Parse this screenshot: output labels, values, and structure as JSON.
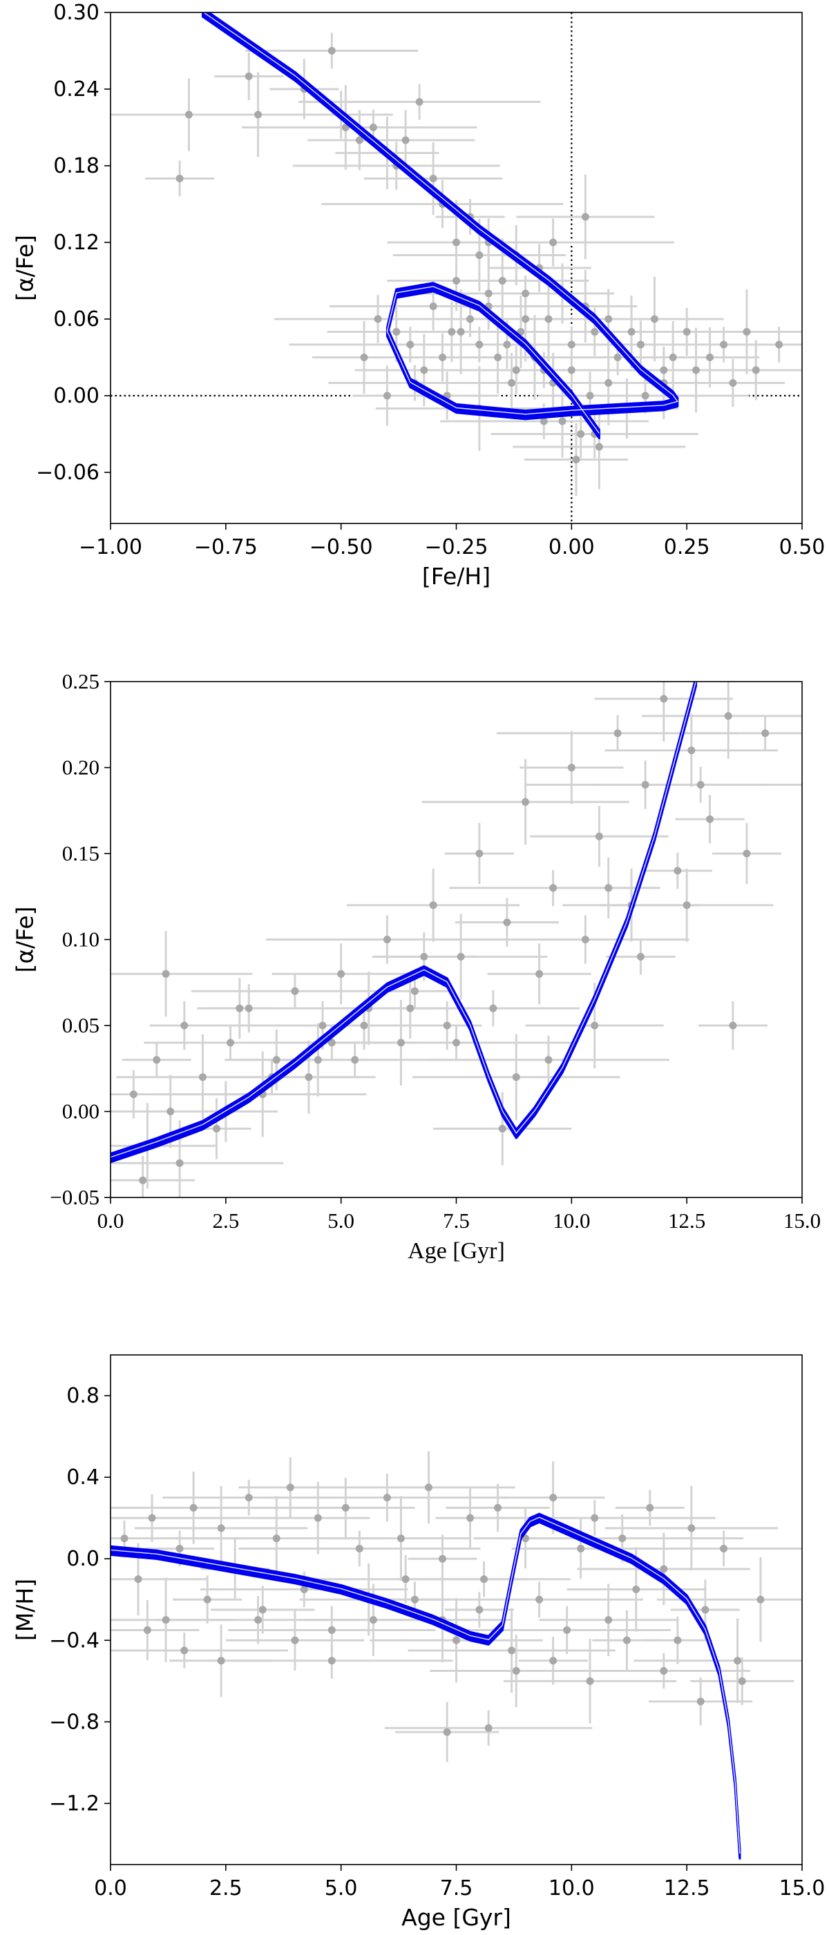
{
  "colors": {
    "points": "#a8a8a8",
    "errorbars": "#d3d3d3",
    "models": "#0000ee",
    "model_highlight": "#ffffff",
    "reference_lines": "#000000",
    "axes": "#000000"
  },
  "chart_data": [
    {
      "type": "scatter",
      "xlabel": "[Fe/H]",
      "ylabel": "[α/Fe]",
      "xlim": [
        -1.0,
        0.5
      ],
      "ylim": [
        -0.1,
        0.3
      ],
      "xticks": [
        "−1.00",
        "−0.75",
        "−0.50",
        "−0.25",
        "0.00",
        "0.25",
        "0.50"
      ],
      "yticks": [
        "−0.06",
        "0.00",
        "0.06",
        "0.12",
        "0.18",
        "0.24",
        "0.30"
      ],
      "reference_lines": {
        "vertical_x": 0.0,
        "horizontal_y": 0.0,
        "style": "dotted"
      },
      "series": [
        {
          "kind": "observations",
          "marker": "circle",
          "x": [
            -0.85,
            -0.83,
            -0.7,
            -0.68,
            -0.58,
            -0.52,
            -0.5,
            -0.49,
            -0.46,
            -0.43,
            -0.4,
            -0.38,
            -0.36,
            -0.33,
            -0.3,
            -0.28,
            -0.25,
            -0.22,
            -0.2,
            -0.18,
            -0.15,
            -0.12,
            -0.1,
            -0.07,
            -0.05,
            -0.02,
            0.0,
            0.03,
            0.05,
            0.08,
            0.1,
            0.13,
            0.15,
            0.18,
            0.2,
            0.22,
            0.25,
            0.27,
            0.3,
            0.33,
            0.35,
            0.38,
            0.4,
            0.45,
            -0.45,
            -0.42,
            -0.38,
            -0.35,
            -0.32,
            -0.28,
            -0.24,
            -0.2,
            -0.16,
            -0.12,
            -0.08,
            -0.04,
            0.0,
            0.04,
            0.08,
            0.12,
            0.16,
            0.2,
            -0.3,
            -0.26,
            -0.22,
            -0.18,
            -0.14,
            -0.1,
            -0.06,
            -0.02,
            0.02,
            0.06,
            -0.4,
            -0.34,
            -0.27,
            -0.2,
            -0.13,
            -0.06,
            0.01,
            0.05,
            -0.25,
            -0.18,
            -0.11,
            -0.04,
            0.03
          ],
          "y": [
            0.17,
            0.22,
            0.25,
            0.22,
            0.24,
            0.27,
            0.22,
            0.21,
            0.2,
            0.21,
            0.19,
            0.18,
            0.2,
            0.23,
            0.17,
            0.15,
            0.12,
            0.14,
            0.11,
            0.12,
            0.09,
            0.11,
            0.08,
            0.1,
            0.06,
            0.08,
            0.04,
            0.07,
            0.05,
            0.06,
            0.03,
            0.05,
            0.04,
            0.06,
            0.02,
            0.03,
            0.05,
            0.02,
            0.03,
            0.04,
            0.01,
            0.05,
            0.02,
            0.04,
            0.03,
            0.06,
            0.05,
            0.04,
            0.02,
            0.03,
            0.05,
            0.04,
            0.03,
            0.02,
            0.03,
            0.01,
            0.02,
            0.0,
            0.01,
            -0.01,
            0.0,
            0.01,
            0.07,
            0.05,
            0.06,
            0.08,
            0.04,
            0.06,
            0.02,
            -0.02,
            -0.03,
            -0.04,
            0.0,
            0.01,
            0.0,
            -0.01,
            0.01,
            -0.02,
            -0.05,
            -0.03,
            0.09,
            0.07,
            0.05,
            0.12,
            0.14
          ]
        },
        {
          "kind": "model_track",
          "x": [
            -0.8,
            -0.6,
            -0.4,
            -0.2,
            -0.05,
            0.05,
            0.15,
            0.22,
            0.23,
            0.2,
            0.1,
            0.0,
            -0.1,
            -0.25,
            -0.35,
            -0.4,
            -0.38,
            -0.3,
            -0.2,
            -0.1,
            0.0,
            0.06
          ],
          "y": [
            0.3,
            0.25,
            0.19,
            0.13,
            0.09,
            0.06,
            0.02,
            0.0,
            -0.005,
            -0.008,
            -0.01,
            -0.012,
            -0.015,
            -0.01,
            0.01,
            0.05,
            0.08,
            0.085,
            0.07,
            0.04,
            0.0,
            -0.03
          ]
        }
      ]
    },
    {
      "type": "scatter",
      "xlabel": "Age [Gyr]",
      "ylabel": "[α/Fe]",
      "xlim": [
        0.0,
        15.0
      ],
      "ylim": [
        -0.05,
        0.25
      ],
      "xticks": [
        "0.0",
        "2.5",
        "5.0",
        "7.5",
        "10.0",
        "12.5",
        "15.0"
      ],
      "yticks": [
        "−0.05",
        "0.00",
        "0.05",
        "0.10",
        "0.15",
        "0.20",
        "0.25"
      ],
      "series": [
        {
          "kind": "observations",
          "marker": "circle",
          "x": [
            0.5,
            0.8,
            1.0,
            1.3,
            1.6,
            2.0,
            2.3,
            2.6,
            3.0,
            3.3,
            3.6,
            4.0,
            4.3,
            4.6,
            5.0,
            5.3,
            5.6,
            6.0,
            6.3,
            6.6,
            7.0,
            7.3,
            7.6,
            8.0,
            8.3,
            8.6,
            9.0,
            9.3,
            9.6,
            10.0,
            10.3,
            10.6,
            11.0,
            11.3,
            11.6,
            12.0,
            12.3,
            12.6,
            13.0,
            13.4,
            13.8,
            14.2,
            0.7,
            1.5,
            2.5,
            3.5,
            4.5,
            5.5,
            6.5,
            7.5,
            8.5,
            9.5,
            10.5,
            11.5,
            12.5,
            13.5,
            1.2,
            2.8,
            4.8,
            6.8,
            8.8,
            10.8,
            12.8
          ],
          "y": [
            0.01,
            -0.02,
            0.03,
            0.0,
            0.05,
            0.02,
            -0.01,
            0.04,
            0.06,
            0.01,
            0.03,
            0.07,
            0.02,
            0.05,
            0.08,
            0.03,
            0.06,
            0.1,
            0.04,
            0.07,
            0.12,
            0.05,
            0.09,
            0.15,
            0.06,
            0.11,
            0.18,
            0.08,
            0.13,
            0.2,
            0.1,
            0.16,
            0.22,
            0.12,
            0.19,
            0.24,
            0.14,
            0.21,
            0.17,
            0.23,
            0.15,
            0.22,
            -0.04,
            -0.03,
            0.0,
            0.02,
            0.03,
            0.05,
            0.06,
            0.04,
            -0.01,
            0.03,
            0.05,
            0.09,
            0.12,
            0.05,
            0.08,
            0.06,
            0.04,
            0.09,
            0.02,
            0.13,
            0.19
          ]
        },
        {
          "kind": "model_track",
          "x": [
            0.0,
            1.0,
            2.0,
            3.0,
            4.0,
            5.0,
            6.0,
            6.8,
            7.3,
            7.8,
            8.2,
            8.5,
            8.8,
            9.2,
            9.8,
            10.5,
            11.2,
            11.8,
            12.3,
            12.7
          ],
          "y": [
            -0.027,
            -0.018,
            -0.008,
            0.008,
            0.028,
            0.05,
            0.072,
            0.082,
            0.075,
            0.05,
            0.02,
            0.0,
            -0.013,
            0.0,
            0.025,
            0.065,
            0.11,
            0.16,
            0.21,
            0.25
          ]
        }
      ]
    },
    {
      "type": "scatter",
      "xlabel": "Age [Gyr]",
      "ylabel": "[M/H]",
      "xlim": [
        0.0,
        15.0
      ],
      "ylim": [
        -1.5,
        1.0
      ],
      "xticks": [
        "0.0",
        "2.5",
        "5.0",
        "7.5",
        "10.0",
        "12.5",
        "15.0"
      ],
      "yticks": [
        "−1.2",
        "−0.8",
        "−0.4",
        "0.0",
        "0.4",
        "0.8"
      ],
      "series": [
        {
          "kind": "observations",
          "marker": "circle",
          "x": [
            0.3,
            0.6,
            0.9,
            1.2,
            1.5,
            1.8,
            2.1,
            2.4,
            2.7,
            3.0,
            3.3,
            3.6,
            3.9,
            4.2,
            4.5,
            4.8,
            5.1,
            5.4,
            5.7,
            6.0,
            6.3,
            6.6,
            6.9,
            7.2,
            7.5,
            7.8,
            8.1,
            8.4,
            8.7,
            9.0,
            9.3,
            9.6,
            9.9,
            10.2,
            10.5,
            10.8,
            11.1,
            11.4,
            11.7,
            12.0,
            12.3,
            12.6,
            12.9,
            13.3,
            13.7,
            14.1,
            0.8,
            1.6,
            2.4,
            3.2,
            4.0,
            4.8,
            5.6,
            6.4,
            7.2,
            8.0,
            8.8,
            9.6,
            10.4,
            11.2,
            12.0,
            12.8,
            13.6,
            7.3,
            8.2
          ],
          "y": [
            0.1,
            -0.1,
            0.2,
            -0.3,
            0.05,
            0.25,
            -0.2,
            0.15,
            -0.05,
            0.3,
            -0.25,
            0.1,
            0.35,
            -0.15,
            0.2,
            -0.35,
            0.25,
            0.05,
            -0.3,
            0.3,
            0.1,
            -0.2,
            0.35,
            0.0,
            -0.4,
            0.2,
            -0.1,
            0.25,
            -0.45,
            0.1,
            -0.2,
            0.3,
            -0.35,
            0.05,
            0.2,
            -0.3,
            0.1,
            -0.15,
            0.25,
            -0.05,
            -0.4,
            0.15,
            -0.25,
            0.05,
            -0.6,
            -0.2,
            -0.35,
            -0.45,
            -0.5,
            -0.3,
            -0.4,
            -0.5,
            -0.2,
            -0.1,
            -0.3,
            -0.25,
            -0.55,
            -0.5,
            -0.6,
            -0.4,
            -0.55,
            -0.7,
            -0.5,
            -0.85,
            -0.83
          ]
        },
        {
          "kind": "model_track",
          "x": [
            0.0,
            1.0,
            2.0,
            3.0,
            4.0,
            5.0,
            6.0,
            7.0,
            7.8,
            8.2,
            8.5,
            8.7,
            8.9,
            9.1,
            9.3,
            9.8,
            10.5,
            11.3,
            12.0,
            12.5,
            12.9,
            13.2,
            13.4,
            13.55,
            13.65
          ],
          "y": [
            0.04,
            0.02,
            -0.02,
            -0.06,
            -0.1,
            -0.15,
            -0.22,
            -0.3,
            -0.38,
            -0.4,
            -0.33,
            -0.1,
            0.12,
            0.18,
            0.2,
            0.15,
            0.08,
            0.0,
            -0.1,
            -0.2,
            -0.35,
            -0.55,
            -0.8,
            -1.1,
            -1.45
          ]
        }
      ]
    }
  ]
}
